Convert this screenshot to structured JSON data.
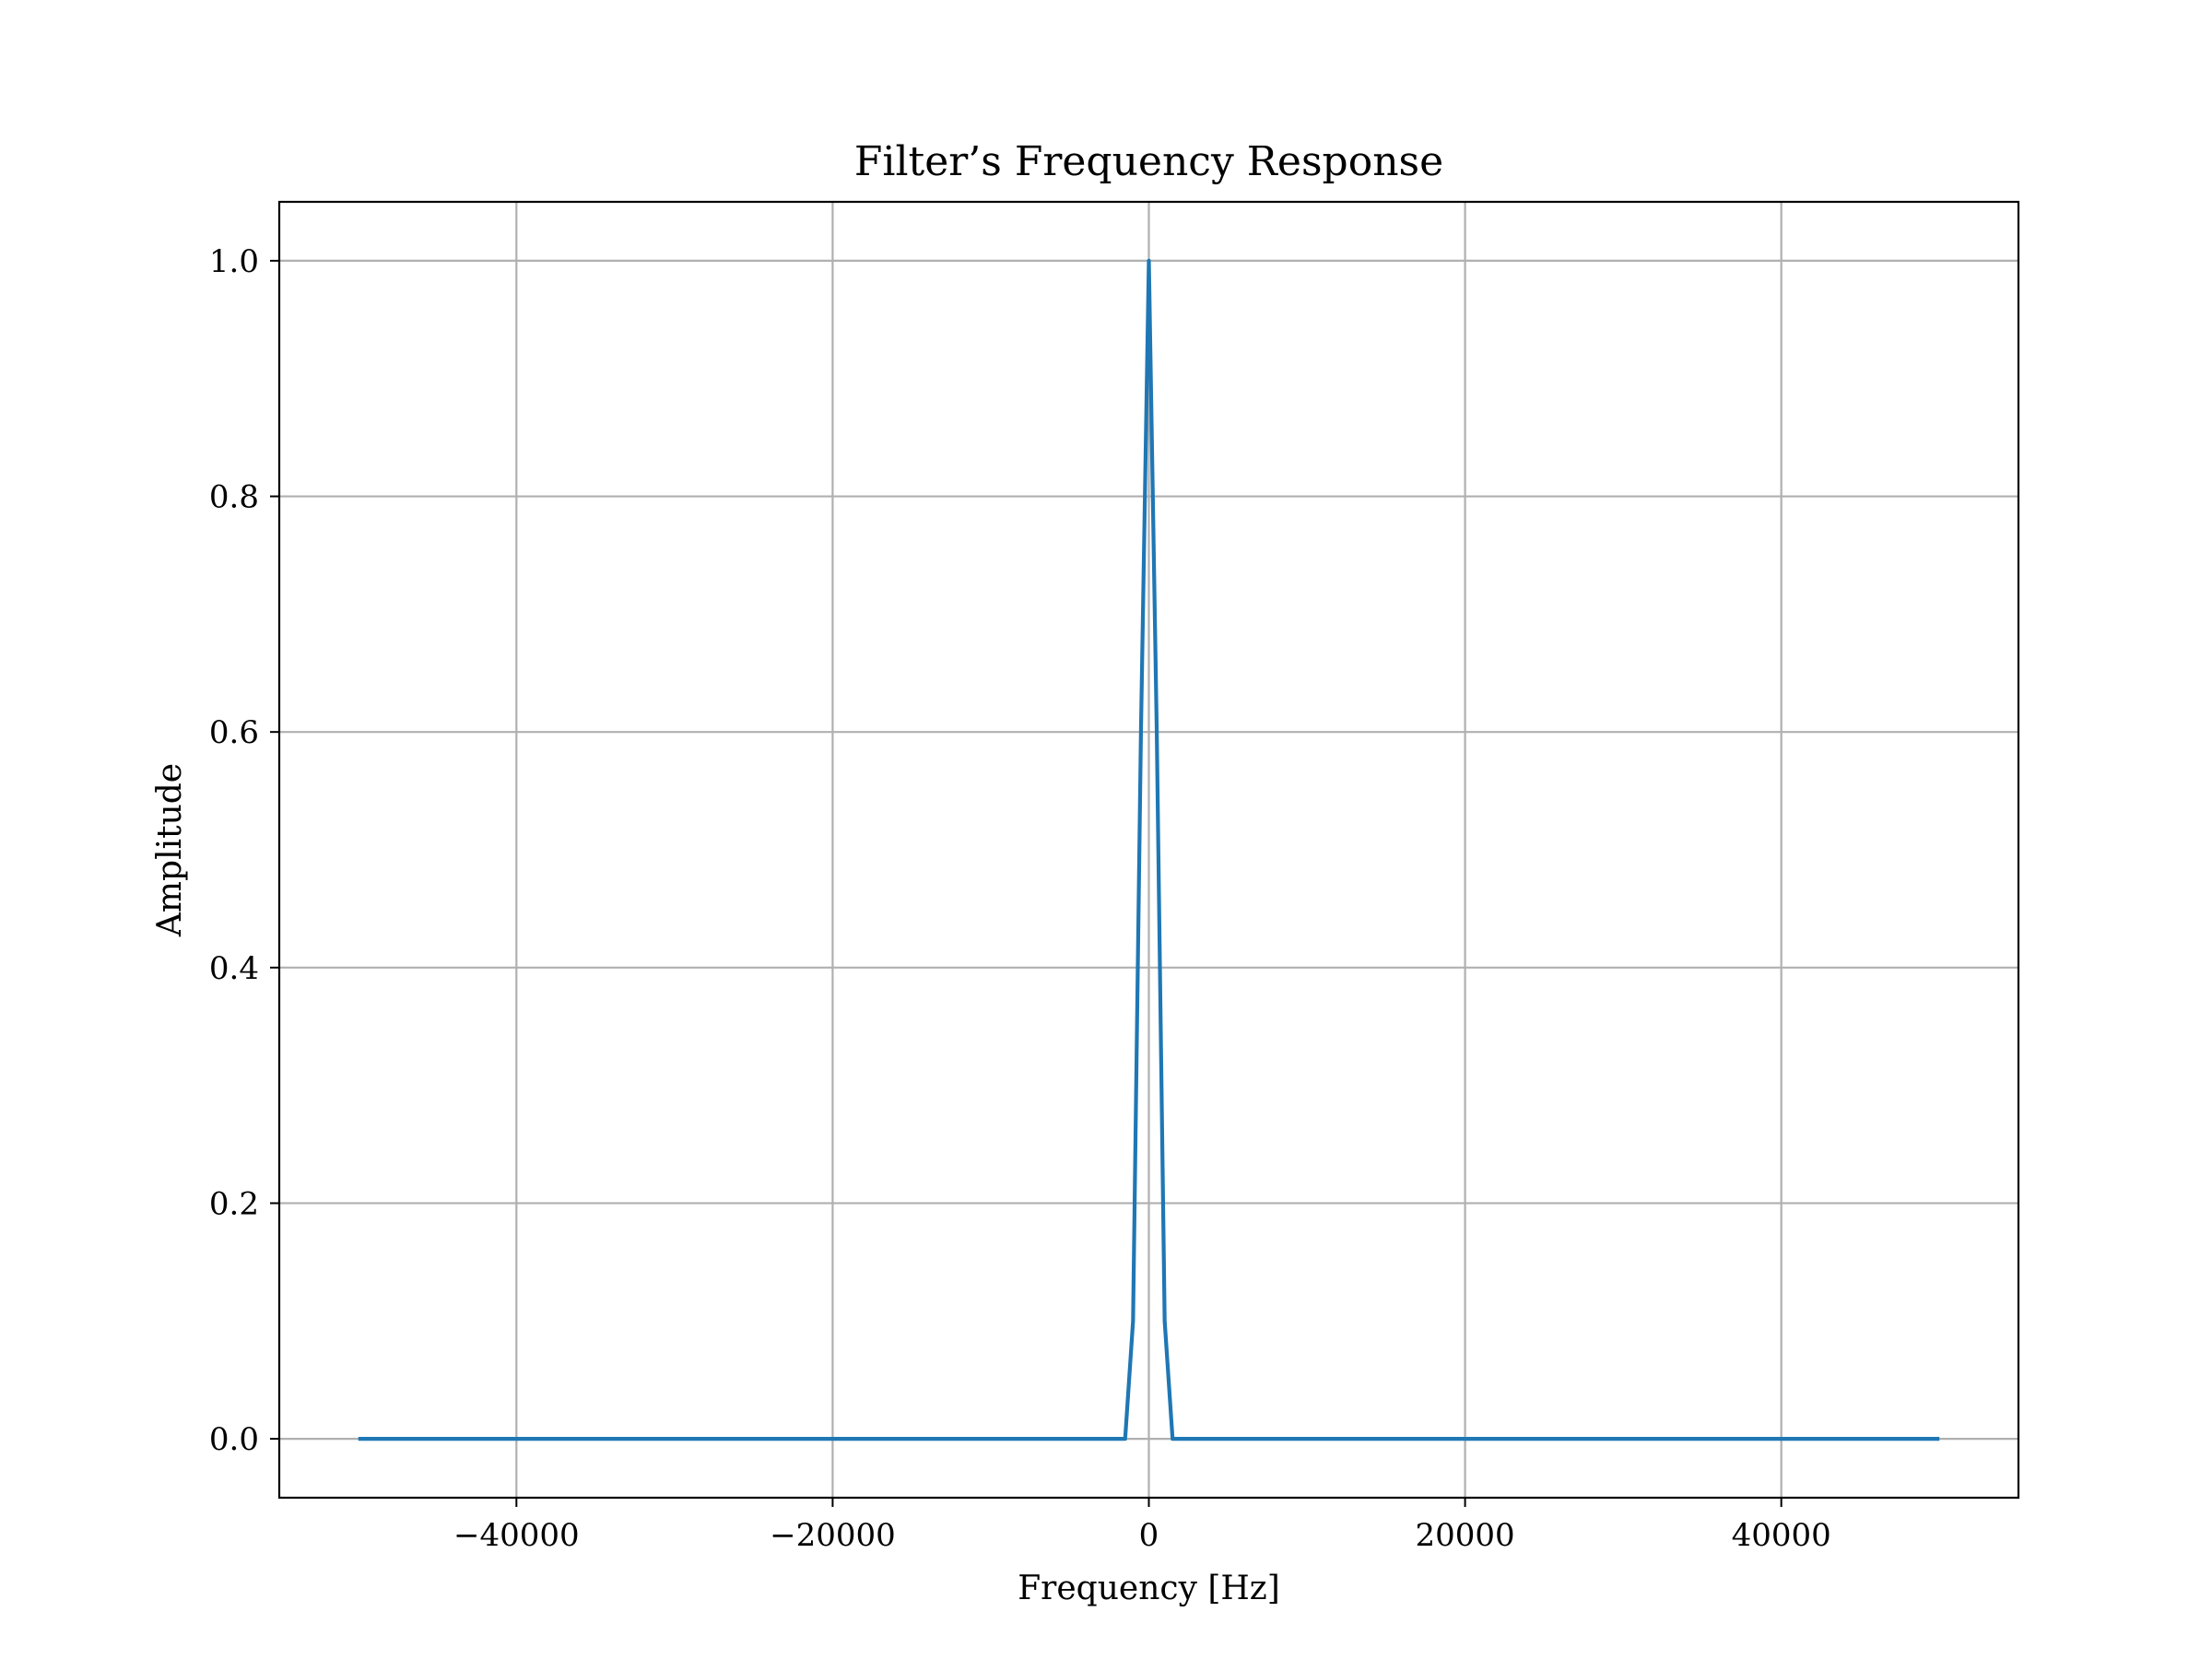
{
  "chart_data": {
    "type": "line",
    "title": "Filter’s Frequency Response",
    "xlabel": "Frequency [Hz]",
    "ylabel": "Amplitude",
    "xlim": [
      -55000,
      55000
    ],
    "ylim": [
      -0.05,
      1.05
    ],
    "xticks": [
      -40000,
      -20000,
      0,
      20000,
      40000
    ],
    "xtick_labels": [
      "−40000",
      "−20000",
      "0",
      "20000",
      "40000"
    ],
    "yticks": [
      0.0,
      0.2,
      0.4,
      0.6,
      0.8,
      1.0
    ],
    "ytick_labels": [
      "0.0",
      "0.2",
      "0.4",
      "0.6",
      "0.8",
      "1.0"
    ],
    "grid": true,
    "series": [
      {
        "color": "#1f77b4",
        "x": [
          -50000,
          -1500,
          -1000,
          -500,
          0,
          500,
          1000,
          1500,
          50000
        ],
        "y": [
          0.0,
          0.0,
          0.1,
          0.6,
          1.0,
          0.6,
          0.1,
          0.0,
          0.0
        ]
      }
    ]
  }
}
